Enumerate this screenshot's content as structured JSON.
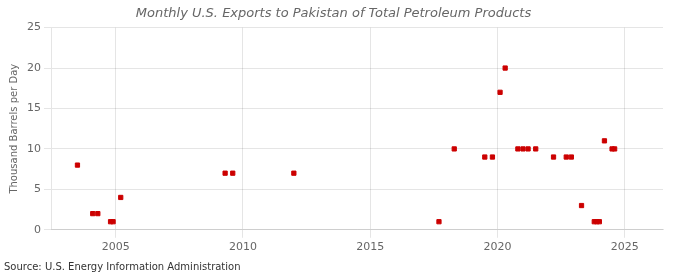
{
  "chart_data": {
    "type": "scatter",
    "title": "Monthly U.S. Exports to Pakistan of Total Petroleum Products",
    "ylabel": "Thousand Barrels per Day",
    "annotations": [
      "Source: U.S. Energy Information Administration"
    ],
    "x": [
      2003.5,
      2004.1,
      2004.3,
      2004.8,
      2004.9,
      2005.2,
      2009.3,
      2009.6,
      2012.0,
      2017.7,
      2018.3,
      2019.5,
      2019.8,
      2020.1,
      2020.3,
      2020.8,
      2021.0,
      2021.2,
      2021.5,
      2022.2,
      2022.7,
      2022.9,
      2023.3,
      2023.8,
      2023.9,
      2024.0,
      2024.2,
      2024.5,
      2024.6
    ],
    "values": [
      8.0,
      2.0,
      2.0,
      1.0,
      1.0,
      4.0,
      7.0,
      7.0,
      7.0,
      1.0,
      10.0,
      9.0,
      9.0,
      17.0,
      20.0,
      10.0,
      10.0,
      10.0,
      10.0,
      9.0,
      9.0,
      9.0,
      3.0,
      1.0,
      1.0,
      1.0,
      11.0,
      10.0,
      10.0
    ],
    "color": "#cc0000",
    "marker": "square",
    "xlim": [
      2002.5,
      2026.5
    ],
    "xticks": [
      2005,
      2010,
      2015,
      2020,
      2025
    ],
    "ylim": [
      0,
      25
    ],
    "yticks": [
      0,
      5,
      10,
      15,
      20,
      25
    ],
    "grid": true
  }
}
